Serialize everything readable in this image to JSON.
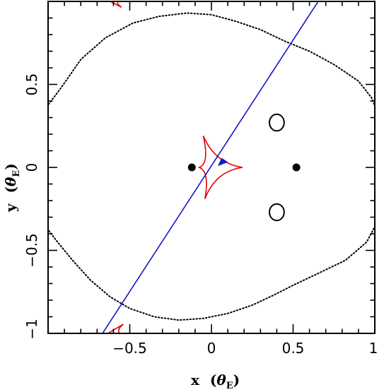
{
  "chart_data": {
    "type": "scatter",
    "xlabel": "x",
    "xlabel_unit": "θ",
    "xlabel_unit_sub": "E",
    "ylabel": "y",
    "ylabel_unit": "θ",
    "ylabel_unit_sub": "E",
    "xlim": [
      -1,
      1
    ],
    "ylim": [
      -1,
      1
    ],
    "x_ticks": [
      {
        "value": -0.5,
        "label": "−0.5"
      },
      {
        "value": 0,
        "label": "0"
      },
      {
        "value": 0.5,
        "label": "0.5"
      },
      {
        "value": 1,
        "label": "1"
      }
    ],
    "y_ticks": [
      {
        "value": -1,
        "label": "−1"
      },
      {
        "value": -0.5,
        "label": "−0.5"
      },
      {
        "value": 0,
        "label": "0"
      },
      {
        "value": 0.5,
        "label": "0.5"
      }
    ],
    "lens_positions": [
      [
        -0.12,
        0
      ],
      [
        0.52,
        0
      ]
    ],
    "planet_images": [
      {
        "center": [
          0.4,
          0.27
        ],
        "rx": 0.045,
        "ry": 0.05
      },
      {
        "center": [
          0.4,
          -0.27
        ],
        "rx": 0.045,
        "ry": 0.05
      }
    ],
    "source_trajectory": {
      "color": "#1515c8",
      "points": [
        [
          -0.68,
          -1.02
        ],
        [
          0.66,
          1.01
        ]
      ]
    },
    "source_position": [
      0.06,
      0.04
    ],
    "caustic_color": "#e00000",
    "caustics": [
      {
        "name": "central",
        "points": [
          [
            -0.05,
            0.19
          ],
          [
            0.19,
            0.0
          ],
          [
            -0.04,
            -0.19
          ],
          [
            -0.075,
            0.0
          ],
          [
            -0.05,
            0.19
          ]
        ]
      },
      {
        "name": "planetary-top",
        "points": [
          [
            -0.64,
            1.01
          ],
          [
            -0.55,
            0.965
          ],
          [
            -0.57,
            1.01
          ]
        ]
      },
      {
        "name": "planetary-bottom",
        "points": [
          [
            -0.65,
            -1.01
          ],
          [
            -0.54,
            -0.945
          ],
          [
            -0.56,
            -1.01
          ]
        ]
      }
    ],
    "critical_curve": [
      [
        -1.02,
        0.35
      ],
      [
        -0.92,
        0.48
      ],
      [
        -0.8,
        0.65
      ],
      [
        -0.65,
        0.78
      ],
      [
        -0.48,
        0.87
      ],
      [
        -0.32,
        0.91
      ],
      [
        -0.15,
        0.93
      ],
      [
        0.0,
        0.92
      ],
      [
        0.15,
        0.88
      ],
      [
        0.3,
        0.83
      ],
      [
        0.45,
        0.76
      ],
      [
        0.6,
        0.7
      ],
      [
        0.75,
        0.62
      ],
      [
        0.9,
        0.52
      ],
      [
        0.98,
        0.42
      ],
      [
        1.02,
        0.32
      ],
      [
        1.02,
        0.0
      ],
      [
        1.02,
        -0.32
      ],
      [
        0.95,
        -0.45
      ],
      [
        0.82,
        -0.56
      ],
      [
        0.65,
        -0.64
      ],
      [
        0.5,
        -0.71
      ],
      [
        0.38,
        -0.77
      ],
      [
        0.25,
        -0.83
      ],
      [
        0.1,
        -0.88
      ],
      [
        -0.05,
        -0.91
      ],
      [
        -0.2,
        -0.92
      ],
      [
        -0.35,
        -0.9
      ],
      [
        -0.5,
        -0.85
      ],
      [
        -0.62,
        -0.78
      ],
      [
        -0.74,
        -0.68
      ],
      [
        -0.85,
        -0.56
      ],
      [
        -0.95,
        -0.44
      ],
      [
        -1.02,
        -0.35
      ]
    ]
  }
}
